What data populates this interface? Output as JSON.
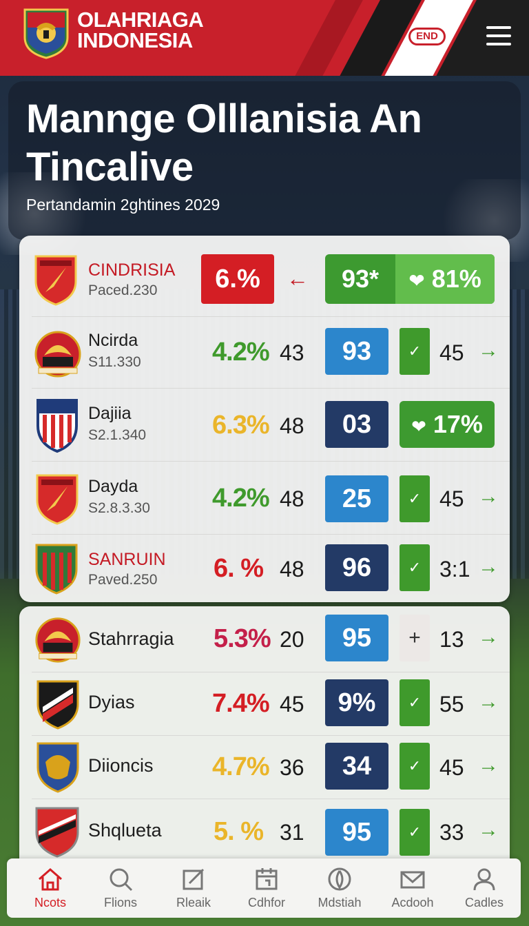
{
  "header": {
    "brand_line1": "OLAHRIAGA",
    "brand_line2": "INDONESIA",
    "lang_badge": "END",
    "menu_icon": "hamburger-icon",
    "colors": {
      "primary": "#c8202b",
      "dark": "#1e1e1e"
    }
  },
  "hero": {
    "title_line1": "Mannge Olllanisia An",
    "title_line2": "Tincalive",
    "subtitle": "Pertandamin 2ghtines 2029"
  },
  "featured": {
    "team": "CINDRISIA",
    "sub": "Paced.230",
    "left_value": "6.%",
    "arrow": "←",
    "score": "93*",
    "right_value": "81%"
  },
  "rows": [
    {
      "team": "Ncirda",
      "sub": "S11.330",
      "pct": "4.2%",
      "pct_color": "green",
      "num": "43",
      "score": "93",
      "score_color": "blue",
      "check": "✓",
      "trail": "45"
    },
    {
      "team": "Dajiia",
      "sub": "S2.1.340",
      "pct": "6.3%",
      "pct_color": "yellow",
      "num": "48",
      "score": "03",
      "score_color": "navy",
      "badge_value": "17%"
    },
    {
      "team": "Dayda",
      "sub": "S2.8.3.30",
      "pct": "4.2%",
      "pct_color": "green",
      "num": "48",
      "score": "25",
      "score_color": "blue",
      "check": "✓",
      "trail": "45"
    },
    {
      "team": "SANRUIN",
      "sub": "Paved.250",
      "pct": "6. %",
      "pct_color": "red",
      "num": "48",
      "score": "96",
      "score_color": "navy",
      "check": "✓",
      "trail": "3:1"
    }
  ],
  "rows2": [
    {
      "team": "Stahrragia",
      "pct": "5.3%",
      "pct_color": "crimson",
      "num": "20",
      "score": "95",
      "score_color": "blue",
      "check": "+",
      "trail": "13"
    },
    {
      "team": "Dyias",
      "pct": "7.4%",
      "pct_color": "red",
      "num": "45",
      "score": "9%",
      "score_color": "navy",
      "check": "✓",
      "trail": "55"
    },
    {
      "team": "Diioncis",
      "pct": "4.7%",
      "pct_color": "yellow",
      "num": "36",
      "score": "34",
      "score_color": "navy",
      "check": "✓",
      "trail": "45"
    },
    {
      "team": "Shqlueta",
      "pct": "5. %",
      "pct_color": "yellow",
      "num": "31",
      "score": "95",
      "score_color": "blue",
      "check": "✓",
      "trail": "33"
    }
  ],
  "nav": [
    {
      "label": "Ncots",
      "icon": "home-icon",
      "active": true
    },
    {
      "label": "Flions",
      "icon": "search-icon"
    },
    {
      "label": "Rleaik",
      "icon": "edit-icon"
    },
    {
      "label": "Cdhfor",
      "icon": "calendar-icon"
    },
    {
      "label": "Mdstiah",
      "icon": "leaf-icon"
    },
    {
      "label": "Acdooh",
      "icon": "mail-icon"
    },
    {
      "label": "Cadles",
      "icon": "user-icon"
    }
  ]
}
